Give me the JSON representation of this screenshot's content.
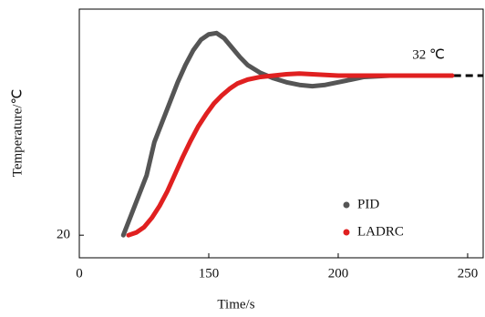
{
  "chart_data": {
    "type": "line",
    "xlabel": "Time/s",
    "ylabel": "Temperature/℃",
    "xlim": [
      100,
      256
    ],
    "ylim": [
      18.3,
      37
    ],
    "xticks": [
      {
        "value": 100,
        "label": "0"
      },
      150,
      200,
      250
    ],
    "yticks": [
      20
    ],
    "legend": "lower right",
    "series": [
      {
        "name": "PID",
        "color": "#555555",
        "x": [
          117,
          120,
          123,
          126,
          129,
          132,
          135,
          138,
          141,
          144,
          147,
          150,
          153,
          156,
          159,
          162,
          165,
          170,
          175,
          180,
          185,
          190,
          195,
          200,
          205,
          210,
          220,
          230,
          244
        ],
        "values": [
          20,
          21.5,
          23,
          24.5,
          27,
          28.5,
          30,
          31.5,
          32.8,
          33.9,
          34.7,
          35.1,
          35.2,
          34.8,
          34.1,
          33.4,
          32.8,
          32.2,
          31.8,
          31.5,
          31.3,
          31.2,
          31.3,
          31.5,
          31.7,
          31.9,
          32,
          32,
          32
        ]
      },
      {
        "name": "LADRC",
        "color": "#e02020",
        "x": [
          119,
          122,
          125,
          128,
          131,
          134,
          137,
          140,
          143,
          146,
          149,
          152,
          155,
          158,
          161,
          165,
          170,
          175,
          180,
          185,
          190,
          195,
          200,
          210,
          220,
          230,
          244
        ],
        "values": [
          20,
          20.2,
          20.6,
          21.3,
          22.2,
          23.3,
          24.6,
          25.9,
          27.1,
          28.2,
          29.1,
          29.9,
          30.5,
          31,
          31.4,
          31.7,
          31.9,
          32,
          32.1,
          32.15,
          32.1,
          32.05,
          32,
          32,
          32,
          32,
          32
        ]
      }
    ],
    "reference_line": {
      "y": 32,
      "x": [
        208,
        256
      ],
      "label": "32 ℃",
      "color": "#000000"
    }
  }
}
